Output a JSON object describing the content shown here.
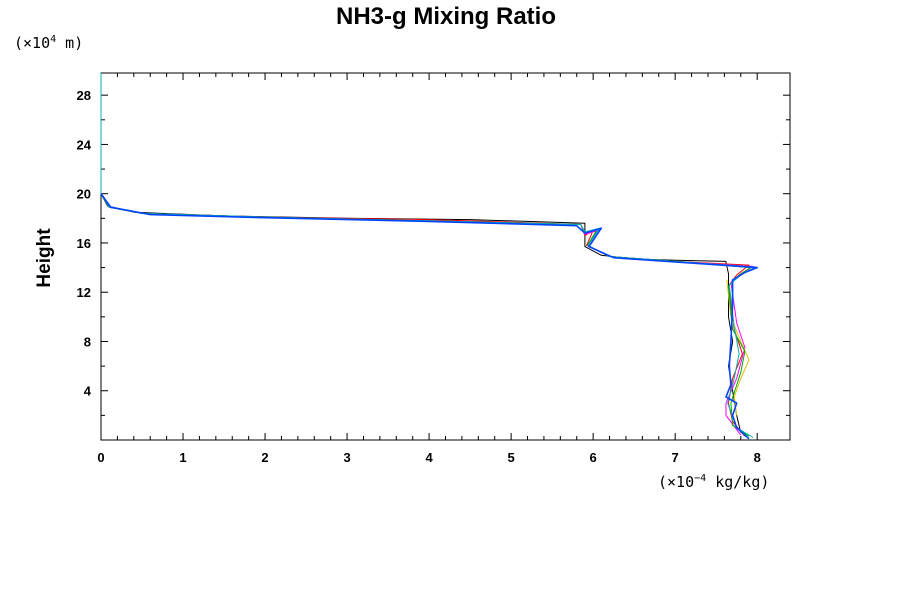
{
  "chart_data": {
    "type": "line",
    "title": "NH3-g Mixing Ratio",
    "xlabel": "",
    "ylabel": "Height",
    "x_unit": {
      "prefix": "(×10",
      "exp": "−4",
      "suffix": " kg/kg)"
    },
    "y_unit": {
      "prefix": "(×10",
      "exp": "4",
      "suffix": " m)"
    },
    "xlim": [
      0,
      8.4
    ],
    "ylim": [
      0,
      29.8
    ],
    "xticks": [
      0,
      1,
      2,
      3,
      4,
      5,
      6,
      7,
      8
    ],
    "yticks": [
      4,
      8,
      12,
      16,
      20,
      24,
      28
    ],
    "grid": false,
    "series": [
      {
        "name": "black",
        "color": "#000000",
        "points": [
          [
            0,
            29.8
          ],
          [
            0,
            20
          ],
          [
            0.08,
            19
          ],
          [
            0.4,
            18.5
          ],
          [
            1.5,
            18.2
          ],
          [
            3,
            18.0
          ],
          [
            4.5,
            17.9
          ],
          [
            5.9,
            17.6
          ],
          [
            5.9,
            15.7
          ],
          [
            6.1,
            15
          ],
          [
            6.5,
            14.7
          ],
          [
            7.0,
            14.6
          ],
          [
            7.62,
            14.5
          ],
          [
            7.62,
            14.4
          ],
          [
            7.65,
            13.5
          ],
          [
            7.65,
            10
          ],
          [
            7.7,
            8
          ],
          [
            7.65,
            6
          ],
          [
            7.7,
            4
          ],
          [
            7.75,
            2
          ],
          [
            7.8,
            0.6
          ]
        ]
      },
      {
        "name": "red",
        "color": "#ff0000",
        "points": [
          [
            0,
            20
          ],
          [
            0.1,
            18.9
          ],
          [
            0.5,
            18.4
          ],
          [
            2,
            18.1
          ],
          [
            4,
            17.9
          ],
          [
            5.85,
            17.5
          ],
          [
            5.9,
            16.6
          ],
          [
            6.0,
            17.0
          ],
          [
            5.92,
            15.8
          ],
          [
            6.2,
            14.9
          ],
          [
            7.0,
            14.5
          ],
          [
            7.9,
            14.2
          ],
          [
            7.75,
            13.4
          ],
          [
            7.65,
            12.5
          ],
          [
            7.72,
            9
          ],
          [
            7.82,
            7
          ],
          [
            7.7,
            5
          ],
          [
            7.65,
            3
          ],
          [
            7.7,
            1.5
          ],
          [
            7.85,
            0.3
          ]
        ]
      },
      {
        "name": "magenta",
        "color": "#ff00ff",
        "points": [
          [
            0,
            20
          ],
          [
            0.1,
            18.9
          ],
          [
            0.5,
            18.4
          ],
          [
            2,
            18.1
          ],
          [
            4,
            17.8
          ],
          [
            5.85,
            17.5
          ],
          [
            5.9,
            16.7
          ],
          [
            6.05,
            17.0
          ],
          [
            5.93,
            15.8
          ],
          [
            6.2,
            14.9
          ],
          [
            7.0,
            14.5
          ],
          [
            7.95,
            14.1
          ],
          [
            7.8,
            13.5
          ],
          [
            7.68,
            12.8
          ],
          [
            7.75,
            9.5
          ],
          [
            7.85,
            7.5
          ],
          [
            7.75,
            5
          ],
          [
            7.62,
            3
          ],
          [
            7.62,
            2
          ],
          [
            7.8,
            0.4
          ]
        ]
      },
      {
        "name": "yellow",
        "color": "#e0c000",
        "points": [
          [
            7.63,
            13
          ],
          [
            7.68,
            10
          ],
          [
            7.8,
            8
          ],
          [
            7.9,
            6.5
          ],
          [
            7.8,
            5
          ],
          [
            7.72,
            3.5
          ],
          [
            7.75,
            2
          ]
        ]
      },
      {
        "name": "green",
        "color": "#00aa00",
        "points": [
          [
            0,
            20
          ],
          [
            0.1,
            18.9
          ],
          [
            0.5,
            18.4
          ],
          [
            2,
            18.1
          ],
          [
            4,
            17.8
          ],
          [
            5.85,
            17.5
          ],
          [
            5.9,
            16.8
          ],
          [
            6.05,
            17.1
          ],
          [
            5.93,
            15.8
          ],
          [
            6.2,
            14.9
          ],
          [
            7.0,
            14.5
          ],
          [
            7.92,
            14.0
          ],
          [
            7.78,
            13.4
          ],
          [
            7.65,
            12.5
          ],
          [
            7.7,
            9
          ],
          [
            7.85,
            7.2
          ],
          [
            7.8,
            5.5
          ],
          [
            7.68,
            3
          ],
          [
            7.7,
            1.2
          ],
          [
            7.9,
            0.3
          ]
        ]
      },
      {
        "name": "cyan",
        "color": "#00b0b0",
        "points": [
          [
            0,
            29.8
          ],
          [
            0,
            20
          ],
          [
            0.1,
            18.9
          ],
          [
            0.5,
            18.4
          ],
          [
            2,
            18.1
          ],
          [
            4,
            17.8
          ],
          [
            5.85,
            17.5
          ],
          [
            5.9,
            16.9
          ],
          [
            6.08,
            17.2
          ],
          [
            5.94,
            15.8
          ],
          [
            6.2,
            14.9
          ],
          [
            7.0,
            14.5
          ],
          [
            7.98,
            14.05
          ],
          [
            7.82,
            13.5
          ],
          [
            7.66,
            12.6
          ],
          [
            7.72,
            9.2
          ],
          [
            7.78,
            7
          ],
          [
            7.72,
            5
          ],
          [
            7.64,
            3
          ],
          [
            7.75,
            1
          ],
          [
            7.95,
            0.2
          ]
        ]
      },
      {
        "name": "blue",
        "color": "#0044ff",
        "points": [
          [
            0,
            20
          ],
          [
            0.12,
            18.9
          ],
          [
            0.6,
            18.3
          ],
          [
            2,
            18.05
          ],
          [
            4,
            17.75
          ],
          [
            5.8,
            17.4
          ],
          [
            5.9,
            16.8
          ],
          [
            6.1,
            17.2
          ],
          [
            5.95,
            15.7
          ],
          [
            6.25,
            14.8
          ],
          [
            7.0,
            14.45
          ],
          [
            8.0,
            14.0
          ],
          [
            7.85,
            13.6
          ],
          [
            7.7,
            13.0
          ],
          [
            7.7,
            11
          ],
          [
            7.68,
            8
          ],
          [
            7.66,
            6
          ],
          [
            7.68,
            4.5
          ],
          [
            7.62,
            3.5
          ],
          [
            7.75,
            3.0
          ],
          [
            7.7,
            2.0
          ],
          [
            7.75,
            1.0
          ],
          [
            7.85,
            0.4
          ],
          [
            7.9,
            0.1
          ]
        ]
      }
    ]
  }
}
